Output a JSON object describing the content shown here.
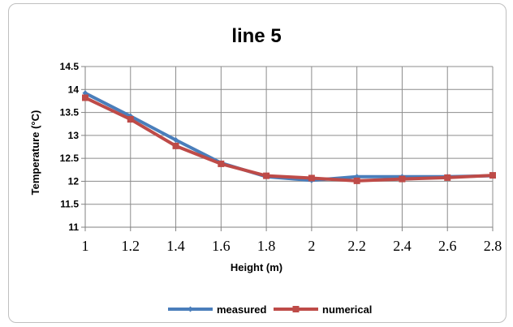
{
  "chart_data": {
    "type": "line",
    "title": "line 5",
    "xlabel": "Height (m)",
    "ylabel": "Temperature (°C)",
    "x": [
      1,
      1.2,
      1.4,
      1.6,
      1.8,
      2,
      2.2,
      2.4,
      2.6,
      2.8
    ],
    "x_tick_labels": [
      "1",
      "1.2",
      "1.4",
      "1.6",
      "1.8",
      "2",
      "2.2",
      "2.4",
      "2.6",
      "2.8"
    ],
    "y_tick_labels": [
      "11",
      "11.5",
      "12",
      "12.5",
      "13",
      "13.5",
      "14",
      "14.5"
    ],
    "xlim": [
      1,
      2.8
    ],
    "ylim": [
      11,
      14.5
    ],
    "y_ticks": [
      11,
      11.5,
      12,
      12.5,
      13,
      13.5,
      14,
      14.5
    ],
    "grid": true,
    "legend_position": "bottom",
    "series": [
      {
        "name": "measured",
        "color": "#4a7ebb",
        "marker": "diamond",
        "values": [
          13.92,
          13.42,
          12.9,
          12.4,
          12.1,
          12.02,
          12.1,
          12.1,
          12.1,
          12.12
        ]
      },
      {
        "name": "numerical",
        "color": "#be4b48",
        "marker": "square",
        "values": [
          13.82,
          13.35,
          12.77,
          12.38,
          12.12,
          12.07,
          12.01,
          12.05,
          12.08,
          12.13
        ]
      }
    ]
  }
}
